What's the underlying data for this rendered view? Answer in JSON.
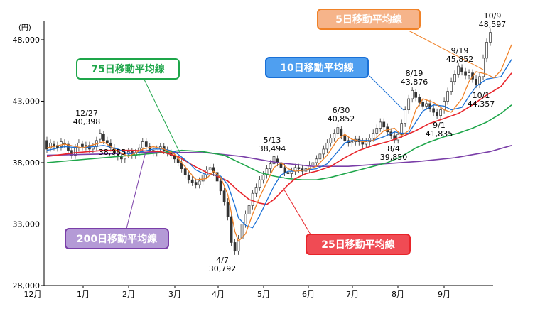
{
  "chart_data": {
    "type": "line",
    "y_unit": "(円)",
    "ylim": [
      28000,
      49500
    ],
    "y_ticks": [
      {
        "value": 28000,
        "label": "28,000"
      },
      {
        "value": 33000,
        "label": "33,000"
      },
      {
        "value": 38000,
        "label": "38,000"
      },
      {
        "value": 43000,
        "label": "43,000"
      },
      {
        "value": 48000,
        "label": "48,000"
      }
    ],
    "x_ticks": [
      "12月",
      "1月",
      "2月",
      "3月",
      "4月",
      "5月",
      "6月",
      "7月",
      "8月",
      "9月"
    ],
    "grid": false,
    "candles": [
      [
        39800,
        39100
      ],
      [
        39200,
        39600
      ],
      [
        39500,
        39300
      ],
      [
        39400,
        39200
      ],
      [
        39300,
        39700
      ],
      [
        39600,
        39500
      ],
      [
        39500,
        39000
      ],
      [
        39000,
        38600
      ],
      [
        38600,
        39200
      ],
      [
        39200,
        39600
      ],
      [
        39500,
        39300
      ],
      [
        39300,
        39400
      ],
      [
        39400,
        39100
      ],
      [
        39100,
        39300
      ],
      [
        39300,
        39800
      ],
      [
        39900,
        40398
      ],
      [
        40300,
        39800
      ],
      [
        39800,
        39600
      ],
      [
        39600,
        39200
      ],
      [
        39200,
        38800
      ],
      [
        38800,
        38500
      ],
      [
        38500,
        38300
      ],
      [
        38300,
        38700
      ],
      [
        38700,
        38900
      ],
      [
        38900,
        38600
      ],
      [
        38600,
        38800
      ],
      [
        38800,
        39200
      ],
      [
        39200,
        39700
      ],
      [
        39700,
        39300
      ],
      [
        39300,
        39000
      ],
      [
        39000,
        38800
      ],
      [
        38800,
        39100
      ],
      [
        39100,
        39300
      ],
      [
        39300,
        39000
      ],
      [
        39000,
        38800
      ],
      [
        38800,
        38600
      ],
      [
        38600,
        38300
      ],
      [
        38300,
        38000
      ],
      [
        38000,
        37500
      ],
      [
        37500,
        37000
      ],
      [
        37000,
        36600
      ],
      [
        36600,
        36400
      ],
      [
        36400,
        36200
      ],
      [
        36200,
        36500
      ],
      [
        36500,
        37000
      ],
      [
        37000,
        37400
      ],
      [
        37400,
        37600
      ],
      [
        37600,
        37200
      ],
      [
        37200,
        36500
      ],
      [
        36500,
        35700
      ],
      [
        35700,
        34800
      ],
      [
        34800,
        33600
      ],
      [
        33600,
        31500
      ],
      [
        31500,
        30792
      ],
      [
        30792,
        31800
      ],
      [
        31800,
        33000
      ],
      [
        33000,
        33800
      ],
      [
        33800,
        34500
      ],
      [
        34500,
        35500
      ],
      [
        35500,
        36000
      ],
      [
        36000,
        36600
      ],
      [
        36600,
        37000
      ],
      [
        37000,
        37500
      ],
      [
        37500,
        37900
      ],
      [
        37900,
        38494
      ],
      [
        38300,
        38000
      ],
      [
        38000,
        37600
      ],
      [
        37600,
        37200
      ],
      [
        37200,
        37100
      ],
      [
        37100,
        37300
      ],
      [
        37300,
        37600
      ],
      [
        37600,
        37500
      ],
      [
        37500,
        37300
      ],
      [
        37300,
        37500
      ],
      [
        37500,
        37800
      ],
      [
        37800,
        38000
      ],
      [
        38000,
        38300
      ],
      [
        38300,
        38700
      ],
      [
        38700,
        39100
      ],
      [
        39100,
        39600
      ],
      [
        39600,
        40000
      ],
      [
        40000,
        40400
      ],
      [
        40400,
        40852
      ],
      [
        40700,
        40200
      ],
      [
        40200,
        39800
      ],
      [
        39800,
        39600
      ],
      [
        39600,
        39700
      ],
      [
        39700,
        39900
      ],
      [
        39900,
        39700
      ],
      [
        39700,
        39500
      ],
      [
        39500,
        39700
      ],
      [
        39700,
        40000
      ],
      [
        40000,
        40400
      ],
      [
        40400,
        40800
      ],
      [
        40800,
        41300
      ],
      [
        41300,
        40900
      ],
      [
        40900,
        40500
      ],
      [
        40500,
        40200
      ],
      [
        40200,
        39850
      ],
      [
        39850,
        40300
      ],
      [
        40300,
        41200
      ],
      [
        41200,
        42300
      ],
      [
        42300,
        43200
      ],
      [
        43200,
        43876
      ],
      [
        43700,
        43300
      ],
      [
        43300,
        42900
      ],
      [
        42900,
        42600
      ],
      [
        42600,
        42800
      ],
      [
        42800,
        42400
      ],
      [
        42400,
        42100
      ],
      [
        42100,
        41835
      ],
      [
        41835,
        42300
      ],
      [
        42300,
        43000
      ],
      [
        43000,
        43800
      ],
      [
        43800,
        44600
      ],
      [
        44600,
        45200
      ],
      [
        45200,
        45852
      ],
      [
        45700,
        45400
      ],
      [
        45400,
        45100
      ],
      [
        45100,
        45300
      ],
      [
        45300,
        44800
      ],
      [
        44800,
        44357
      ],
      [
        44357,
        45000
      ],
      [
        45000,
        46500
      ],
      [
        46500,
        47800
      ],
      [
        47800,
        48597
      ]
    ],
    "series": [
      {
        "name": "5日移動平均線",
        "color": "#f08228",
        "width": 1.3,
        "values": [
          [
            0,
            39200
          ],
          [
            5,
            39500
          ],
          [
            10,
            39200
          ],
          [
            16,
            39700
          ],
          [
            20,
            38900
          ],
          [
            23,
            38500
          ],
          [
            27,
            39100
          ],
          [
            30,
            39300
          ],
          [
            33,
            39100
          ],
          [
            36,
            38700
          ],
          [
            40,
            37300
          ],
          [
            42,
            36600
          ],
          [
            45,
            36700
          ],
          [
            47,
            37300
          ],
          [
            49,
            36800
          ],
          [
            51,
            35400
          ],
          [
            53,
            32400
          ],
          [
            54,
            31600
          ],
          [
            56,
            32200
          ],
          [
            58,
            33800
          ],
          [
            60,
            35200
          ],
          [
            62,
            36400
          ],
          [
            64,
            37600
          ],
          [
            66,
            38000
          ],
          [
            68,
            37500
          ],
          [
            70,
            37300
          ],
          [
            73,
            37400
          ],
          [
            76,
            37700
          ],
          [
            79,
            38600
          ],
          [
            82,
            39900
          ],
          [
            84,
            40300
          ],
          [
            86,
            39900
          ],
          [
            89,
            39700
          ],
          [
            92,
            39800
          ],
          [
            95,
            40600
          ],
          [
            98,
            40800
          ],
          [
            100,
            40200
          ],
          [
            102,
            40600
          ],
          [
            104,
            42300
          ],
          [
            106,
            43200
          ],
          [
            109,
            42900
          ],
          [
            112,
            42300
          ],
          [
            114,
            42100
          ],
          [
            117,
            43200
          ],
          [
            119,
            44600
          ],
          [
            121,
            45400
          ],
          [
            124,
            45200
          ],
          [
            126,
            44900
          ],
          [
            128,
            45500
          ],
          [
            131,
            47600
          ]
        ]
      },
      {
        "name": "10日移動平均線",
        "color": "#1a70d6",
        "width": 1.3,
        "values": [
          [
            0,
            39000
          ],
          [
            5,
            39300
          ],
          [
            10,
            39200
          ],
          [
            16,
            39400
          ],
          [
            20,
            39100
          ],
          [
            23,
            38700
          ],
          [
            27,
            38900
          ],
          [
            30,
            39100
          ],
          [
            33,
            39100
          ],
          [
            36,
            38900
          ],
          [
            40,
            38000
          ],
          [
            42,
            37400
          ],
          [
            45,
            37000
          ],
          [
            47,
            37000
          ],
          [
            49,
            36900
          ],
          [
            51,
            36200
          ],
          [
            53,
            34500
          ],
          [
            54,
            33500
          ],
          [
            56,
            32900
          ],
          [
            58,
            32700
          ],
          [
            60,
            33700
          ],
          [
            62,
            34900
          ],
          [
            64,
            36100
          ],
          [
            66,
            37000
          ],
          [
            68,
            37300
          ],
          [
            70,
            37300
          ],
          [
            73,
            37400
          ],
          [
            76,
            37500
          ],
          [
            79,
            37900
          ],
          [
            82,
            38900
          ],
          [
            84,
            39600
          ],
          [
            86,
            39800
          ],
          [
            89,
            39800
          ],
          [
            92,
            39800
          ],
          [
            95,
            40100
          ],
          [
            98,
            40500
          ],
          [
            100,
            40400
          ],
          [
            102,
            40400
          ],
          [
            104,
            41300
          ],
          [
            106,
            42200
          ],
          [
            109,
            42700
          ],
          [
            112,
            42600
          ],
          [
            114,
            42300
          ],
          [
            117,
            42500
          ],
          [
            119,
            43400
          ],
          [
            121,
            44200
          ],
          [
            124,
            44800
          ],
          [
            126,
            44900
          ],
          [
            128,
            45000
          ],
          [
            131,
            46400
          ]
        ]
      },
      {
        "name": "25日移動平均線",
        "color": "#e8242a",
        "width": 1.6,
        "values": [
          [
            0,
            38500
          ],
          [
            8,
            38800
          ],
          [
            16,
            39000
          ],
          [
            24,
            39000
          ],
          [
            32,
            38900
          ],
          [
            37,
            38500
          ],
          [
            41,
            37800
          ],
          [
            45,
            37200
          ],
          [
            48,
            36900
          ],
          [
            51,
            36500
          ],
          [
            54,
            35700
          ],
          [
            57,
            35000
          ],
          [
            60,
            34700
          ],
          [
            62,
            34600
          ],
          [
            64,
            35000
          ],
          [
            66,
            35600
          ],
          [
            68,
            36200
          ],
          [
            70,
            36700
          ],
          [
            73,
            37100
          ],
          [
            76,
            37300
          ],
          [
            80,
            37700
          ],
          [
            84,
            38400
          ],
          [
            88,
            39000
          ],
          [
            92,
            39400
          ],
          [
            96,
            39700
          ],
          [
            100,
            40100
          ],
          [
            104,
            40600
          ],
          [
            108,
            41200
          ],
          [
            112,
            41600
          ],
          [
            116,
            42000
          ],
          [
            120,
            42700
          ],
          [
            124,
            43500
          ],
          [
            128,
            44200
          ],
          [
            131,
            45300
          ]
        ]
      },
      {
        "name": "75日移動平均線",
        "color": "#1ea64a",
        "width": 1.6,
        "values": [
          [
            0,
            38000
          ],
          [
            8,
            38200
          ],
          [
            16,
            38400
          ],
          [
            24,
            38600
          ],
          [
            32,
            38800
          ],
          [
            38,
            39000
          ],
          [
            44,
            38900
          ],
          [
            50,
            38600
          ],
          [
            55,
            37900
          ],
          [
            60,
            37200
          ],
          [
            64,
            36900
          ],
          [
            68,
            36700
          ],
          [
            72,
            36600
          ],
          [
            76,
            36600
          ],
          [
            80,
            36800
          ],
          [
            84,
            37100
          ],
          [
            88,
            37400
          ],
          [
            92,
            37700
          ],
          [
            96,
            38000
          ],
          [
            100,
            38500
          ],
          [
            104,
            39200
          ],
          [
            108,
            39700
          ],
          [
            112,
            40100
          ],
          [
            116,
            40400
          ],
          [
            120,
            40800
          ],
          [
            124,
            41300
          ],
          [
            128,
            42000
          ],
          [
            131,
            42700
          ]
        ]
      },
      {
        "name": "200日移動平均線",
        "color": "#7a3ea8",
        "width": 1.6,
        "values": [
          [
            0,
            38600
          ],
          [
            15,
            38700
          ],
          [
            30,
            38850
          ],
          [
            45,
            38800
          ],
          [
            55,
            38500
          ],
          [
            65,
            38000
          ],
          [
            75,
            37700
          ],
          [
            85,
            37700
          ],
          [
            95,
            37900
          ],
          [
            105,
            38100
          ],
          [
            115,
            38400
          ],
          [
            125,
            38900
          ],
          [
            131,
            39400
          ]
        ]
      }
    ],
    "annotations": [
      {
        "date": "12/27",
        "value": "40,398",
        "i": 15
      },
      {
        "date": "5/13",
        "value": "38,494",
        "i": 64
      },
      {
        "date": "4/7",
        "value": "30,792",
        "i": 53
      },
      {
        "date": "6/30",
        "value": "40,852",
        "i": 82
      },
      {
        "date": "8/4",
        "value": "39,850",
        "i": 98
      },
      {
        "date": "8/19",
        "value": "43,876",
        "i": 103
      },
      {
        "date": "9/1",
        "value": "41,835",
        "i": 110
      },
      {
        "date": "9/19",
        "value": "45,852",
        "i": 119
      },
      {
        "date": "10/1",
        "value": "44,357",
        "i": 126
      },
      {
        "date": "10/9",
        "value": "48,597",
        "i": 131
      },
      {
        "value": "38,055",
        "i": 21
      }
    ],
    "legend_boxes": [
      {
        "label": "5日移動平均線",
        "color": "#f08228",
        "fill": "#f6b48a",
        "text_color": "#ffffff"
      },
      {
        "label": "10日移動平均線",
        "color": "#1a70d6",
        "fill": "#4f9ff0",
        "text_color": "#ffffff"
      },
      {
        "label": "25日移動平均線",
        "color": "#e8242a",
        "fill": "#f04b54",
        "text_color": "#ffffff"
      },
      {
        "label": "75日移動平均線",
        "color": "#1ea64a",
        "fill": "#ffffff",
        "text_color": "#1ea64a"
      },
      {
        "label": "200日移動平均線",
        "color": "#7a3ea8",
        "fill": "#b49ad6",
        "text_color": "#ffffff"
      }
    ]
  }
}
